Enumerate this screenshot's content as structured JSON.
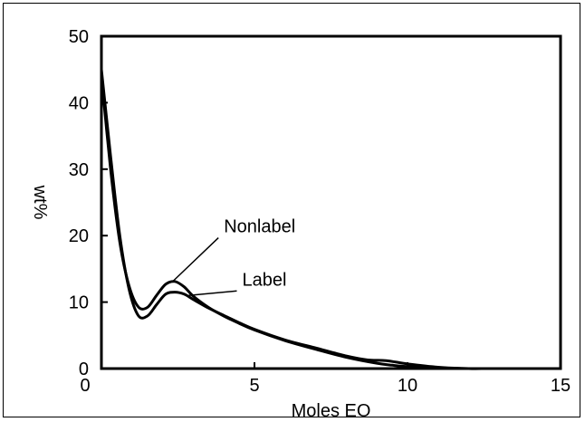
{
  "chart_data": {
    "type": "line",
    "title": "",
    "xlabel": "Moles EO",
    "ylabel": "wt%",
    "xlim": [
      0,
      15
    ],
    "ylim": [
      0,
      50
    ],
    "xticks": [
      0,
      5,
      10,
      15
    ],
    "yticks": [
      0,
      10,
      20,
      30,
      40,
      50
    ],
    "grid": false,
    "series": [
      {
        "name": "Nonlabel",
        "x": [
          0.0,
          0.3,
          0.6,
          0.9,
          1.2,
          1.5,
          1.8,
          2.1,
          2.4,
          2.7,
          3.0,
          3.5,
          4.0,
          4.5,
          5.0,
          6.0,
          7.0,
          8.0,
          9.0,
          9.5,
          10.0,
          11.0,
          12.0,
          12.5
        ],
        "y": [
          44.0,
          30.0,
          19.0,
          12.5,
          9.3,
          9.2,
          11.0,
          12.7,
          13.1,
          12.3,
          10.9,
          9.2,
          7.9,
          6.8,
          5.8,
          4.2,
          2.9,
          1.7,
          0.8,
          0.5,
          0.3,
          0.1,
          0.0,
          0.0
        ]
      },
      {
        "name": "Label",
        "x": [
          0.0,
          0.3,
          0.6,
          0.9,
          1.2,
          1.5,
          1.8,
          2.1,
          2.4,
          2.7,
          3.0,
          3.5,
          4.0,
          4.5,
          5.0,
          6.0,
          7.0,
          8.0,
          8.7,
          9.3,
          10.0,
          11.0,
          12.0,
          12.5
        ],
        "y": [
          45.0,
          32.0,
          20.0,
          12.0,
          8.0,
          7.9,
          9.6,
          11.2,
          11.5,
          11.2,
          10.4,
          9.1,
          8.0,
          6.9,
          5.9,
          4.3,
          3.1,
          1.9,
          1.3,
          1.2,
          0.7,
          0.2,
          0.0,
          0.0
        ]
      }
    ],
    "annotations": [
      {
        "text": "Nonlabel",
        "series": "Nonlabel",
        "arrow_x": 2.35,
        "arrow_y": 13.2,
        "text_x": 4.0,
        "text_y": 20.5
      },
      {
        "text": "Label",
        "series": "Label",
        "arrow_x": 2.85,
        "arrow_y": 11.0,
        "text_x": 4.6,
        "text_y": 12.5
      }
    ],
    "line_color": "#000000"
  }
}
